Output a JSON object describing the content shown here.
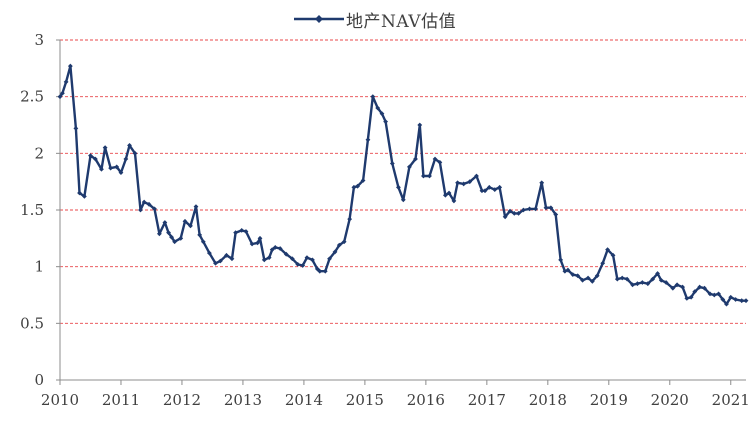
{
  "chart_data": {
    "type": "line",
    "legend": "地产NAV估值",
    "legend_position": "top-center",
    "colors": {
      "series": "#1f3a6e",
      "grid": "#e8474a",
      "axis": "#8c8c8c",
      "text": "#404040"
    },
    "x_ticks": [
      "2010",
      "2011",
      "2012",
      "2013",
      "2014",
      "2015",
      "2016",
      "2017",
      "2018",
      "2019",
      "2020",
      "2021"
    ],
    "y_ticks": [
      "0",
      "0.5",
      "1",
      "1.5",
      "2",
      "2.5",
      "3"
    ],
    "ylim": [
      0,
      3
    ],
    "xlim": [
      2010.0,
      2021.25
    ],
    "grid": "horizontal-dashed",
    "series": [
      {
        "marker": "diamond",
        "x": [
          2010.0,
          2010.04,
          2010.1,
          2010.17,
          2010.26,
          2010.32,
          2010.4,
          2010.5,
          2010.58,
          2010.68,
          2010.74,
          2010.83,
          2010.93,
          2011.0,
          2011.08,
          2011.14,
          2011.23,
          2011.32,
          2011.38,
          2011.46,
          2011.55,
          2011.63,
          2011.72,
          2011.78,
          2011.83,
          2011.88,
          2011.98,
          2012.05,
          2012.14,
          2012.23,
          2012.29,
          2012.35,
          2012.45,
          2012.55,
          2012.63,
          2012.73,
          2012.82,
          2012.88,
          2012.98,
          2013.05,
          2013.15,
          2013.24,
          2013.28,
          2013.35,
          2013.43,
          2013.48,
          2013.53,
          2013.61,
          2013.71,
          2013.81,
          2013.9,
          2013.98,
          2014.05,
          2014.14,
          2014.22,
          2014.26,
          2014.35,
          2014.42,
          2014.51,
          2014.58,
          2014.66,
          2014.75,
          2014.82,
          2014.88,
          2014.97,
          2015.05,
          2015.13,
          2015.21,
          2015.28,
          2015.34,
          2015.45,
          2015.55,
          2015.63,
          2015.73,
          2015.83,
          2015.9,
          2015.96,
          2016.06,
          2016.15,
          2016.23,
          2016.32,
          2016.38,
          2016.46,
          2016.52,
          2016.62,
          2016.72,
          2016.83,
          2016.92,
          2016.97,
          2017.04,
          2017.13,
          2017.21,
          2017.3,
          2017.38,
          2017.45,
          2017.52,
          2017.6,
          2017.7,
          2017.8,
          2017.9,
          2017.97,
          2018.05,
          2018.13,
          2018.21,
          2018.28,
          2018.33,
          2018.41,
          2018.49,
          2018.57,
          2018.66,
          2018.73,
          2018.81,
          2018.9,
          2018.98,
          2019.07,
          2019.14,
          2019.22,
          2019.3,
          2019.39,
          2019.47,
          2019.55,
          2019.64,
          2019.72,
          2019.8,
          2019.86,
          2019.94,
          2020.05,
          2020.12,
          2020.21,
          2020.28,
          2020.35,
          2020.41,
          2020.49,
          2020.57,
          2020.66,
          2020.73,
          2020.8,
          2020.87,
          2020.93,
          2021.0,
          2021.08,
          2021.18,
          2021.25
        ],
        "values": [
          2.5,
          2.53,
          2.63,
          2.77,
          2.22,
          1.65,
          1.62,
          1.98,
          1.95,
          1.86,
          2.05,
          1.87,
          1.88,
          1.83,
          1.95,
          2.07,
          2.0,
          1.5,
          1.57,
          1.55,
          1.51,
          1.29,
          1.39,
          1.3,
          1.26,
          1.22,
          1.25,
          1.4,
          1.36,
          1.53,
          1.28,
          1.22,
          1.12,
          1.03,
          1.05,
          1.1,
          1.07,
          1.3,
          1.32,
          1.31,
          1.2,
          1.21,
          1.25,
          1.06,
          1.08,
          1.15,
          1.17,
          1.16,
          1.11,
          1.07,
          1.02,
          1.01,
          1.08,
          1.06,
          0.98,
          0.96,
          0.96,
          1.07,
          1.13,
          1.19,
          1.22,
          1.42,
          1.7,
          1.71,
          1.76,
          2.12,
          2.5,
          2.4,
          2.35,
          2.28,
          1.91,
          1.7,
          1.59,
          1.88,
          1.95,
          2.25,
          1.8,
          1.8,
          1.95,
          1.92,
          1.63,
          1.65,
          1.58,
          1.74,
          1.73,
          1.75,
          1.8,
          1.67,
          1.67,
          1.7,
          1.68,
          1.7,
          1.44,
          1.49,
          1.47,
          1.47,
          1.5,
          1.51,
          1.51,
          1.74,
          1.52,
          1.52,
          1.46,
          1.06,
          0.96,
          0.97,
          0.93,
          0.92,
          0.88,
          0.9,
          0.87,
          0.92,
          1.03,
          1.15,
          1.1,
          0.89,
          0.9,
          0.89,
          0.84,
          0.85,
          0.86,
          0.85,
          0.89,
          0.94,
          0.88,
          0.86,
          0.81,
          0.84,
          0.82,
          0.72,
          0.73,
          0.78,
          0.82,
          0.81,
          0.76,
          0.75,
          0.76,
          0.71,
          0.67,
          0.73,
          0.71,
          0.7,
          0.7
        ]
      }
    ]
  }
}
